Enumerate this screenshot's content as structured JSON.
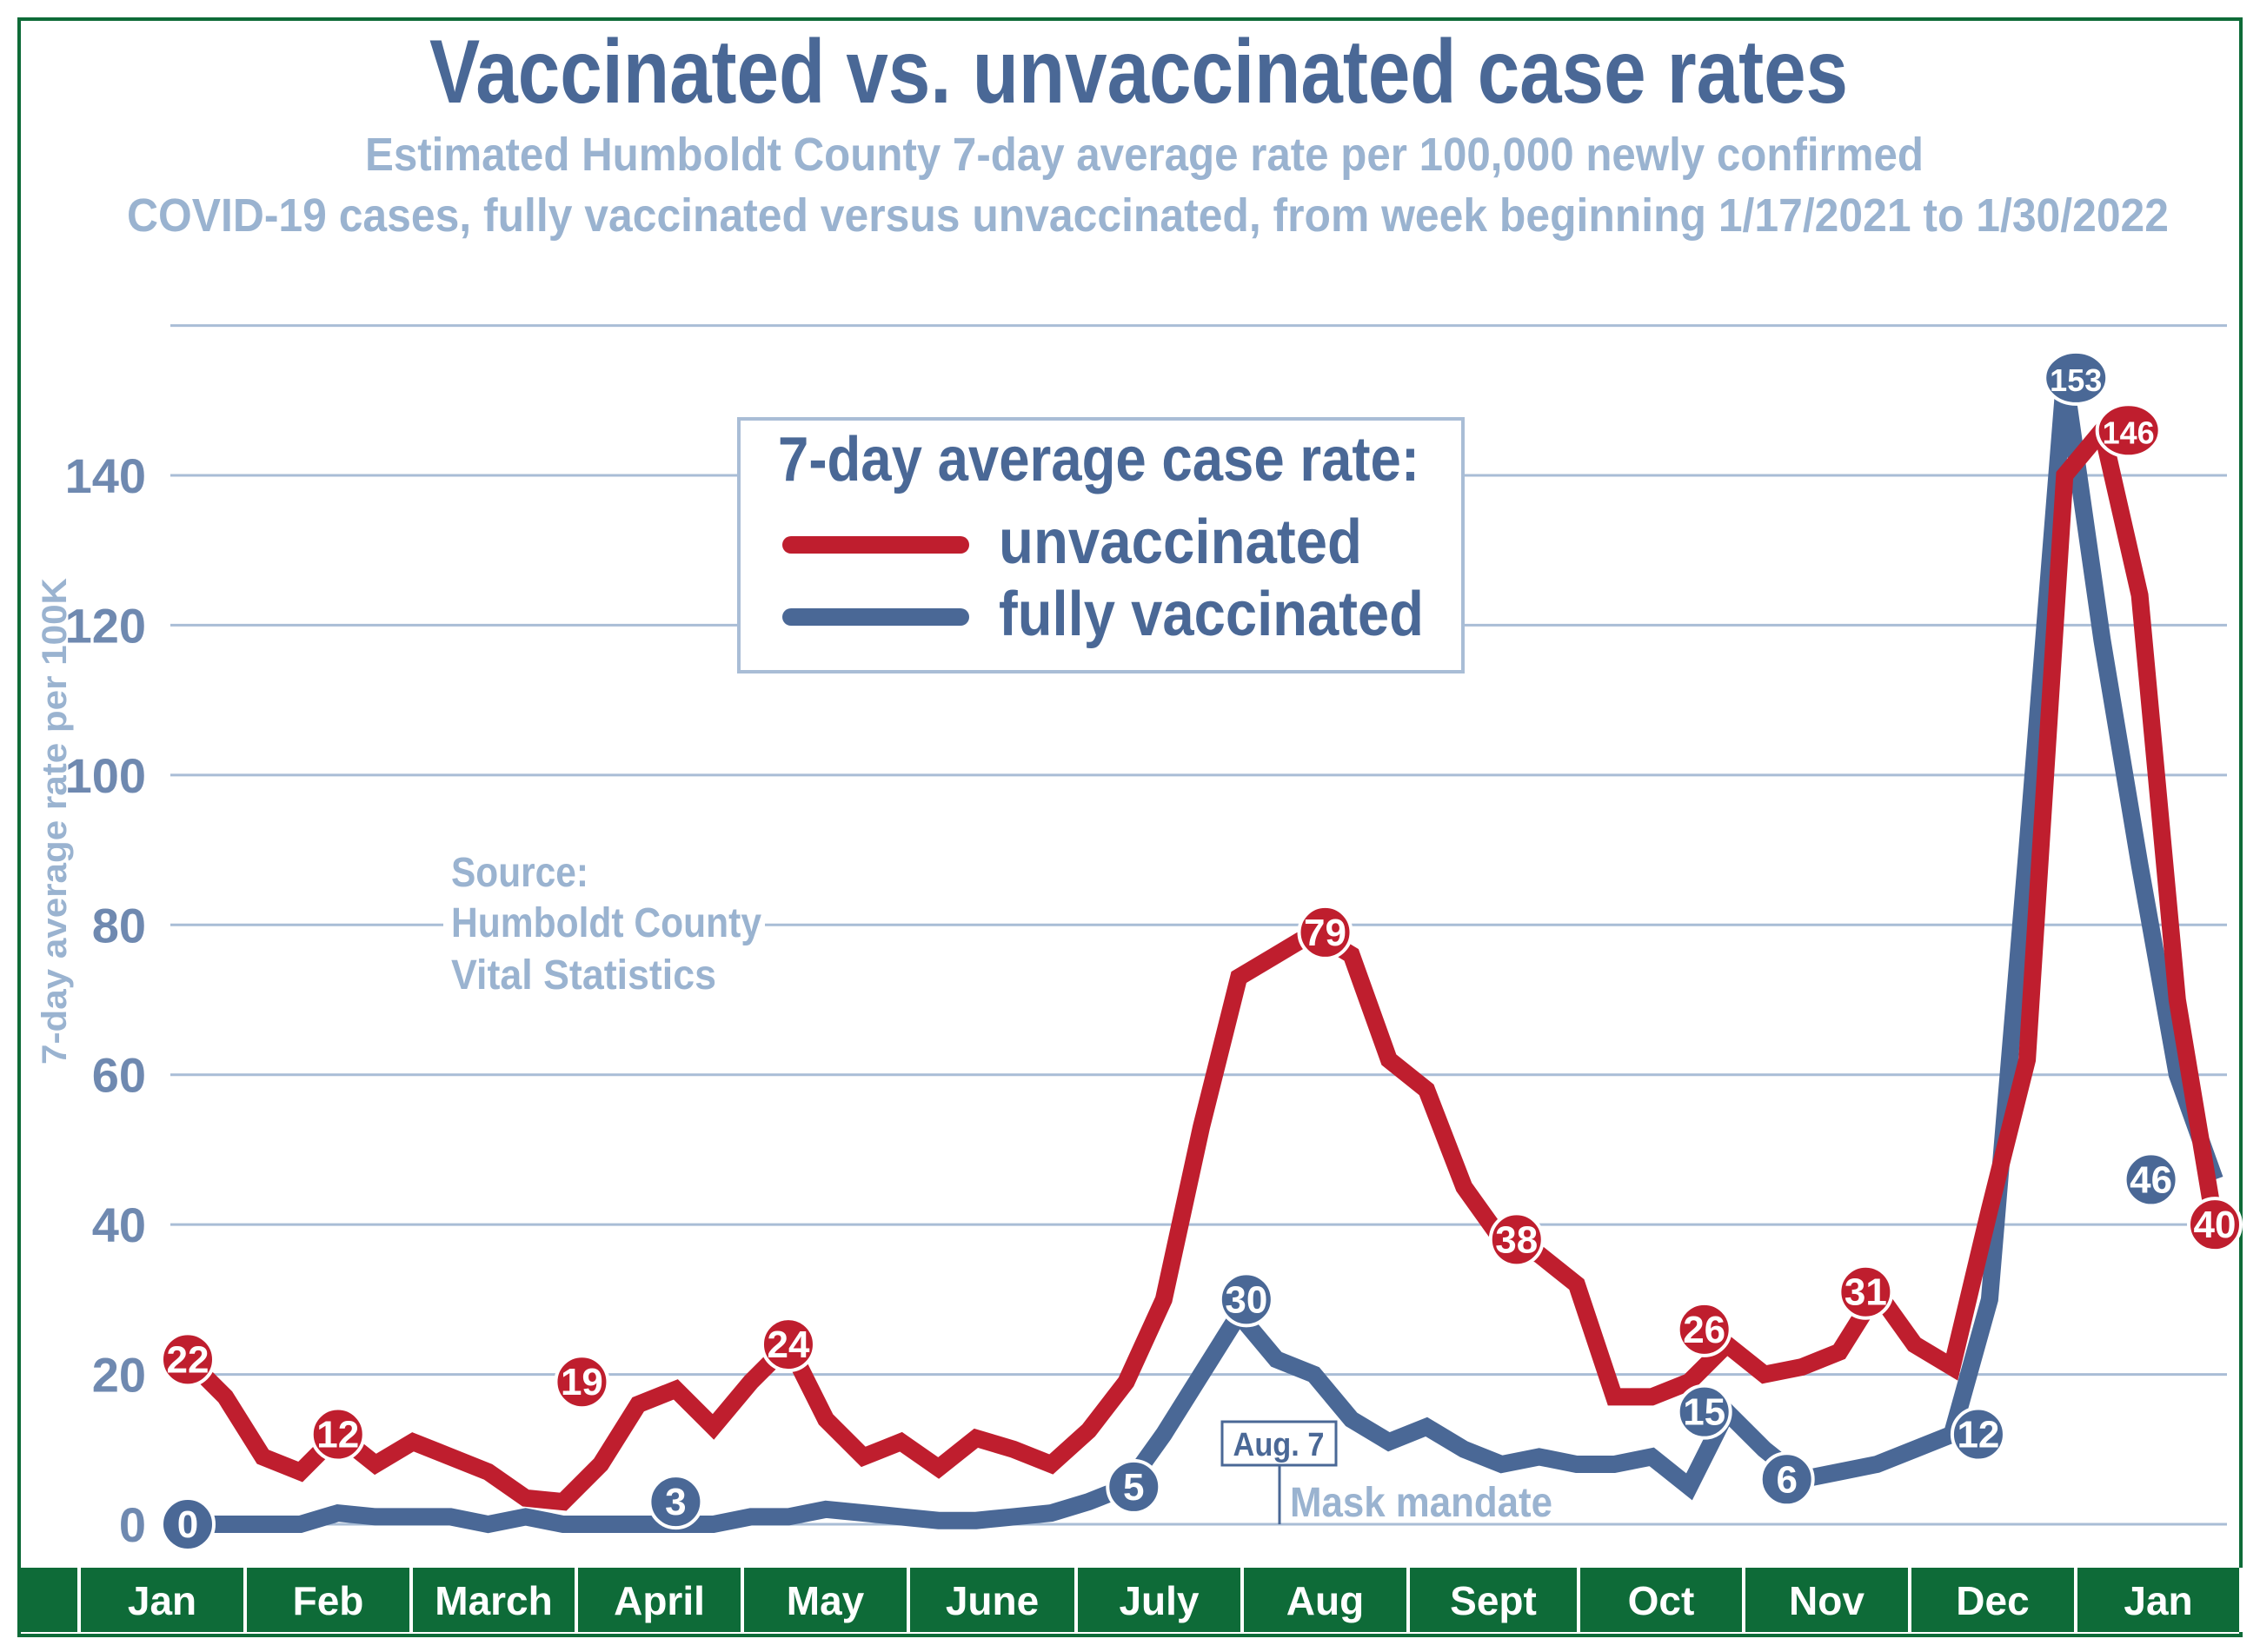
{
  "chart_data": {
    "type": "line",
    "title": "Vaccinated vs. unvaccinated case rates",
    "subtitle": [
      "Estimated Humboldt County 7-day average rate per 100,000 newly confirmed",
      "COVID-19 cases,  fully vaccinated versus unvaccinated, from week beginning 1/17/2021 to 1/30/2022"
    ],
    "ylabel": "7-day average rate per 100K",
    "xlabel": "",
    "ylim": [
      0,
      160
    ],
    "yticks": [
      0,
      20,
      40,
      60,
      80,
      100,
      120,
      140
    ],
    "grid": true,
    "months": [
      "Jan",
      "Feb",
      "March",
      "April",
      "May",
      "June",
      "July",
      "Aug",
      "Sept",
      "Oct",
      "Nov",
      "Dec",
      "Jan"
    ],
    "legend": {
      "title": "7-day average case rate:",
      "placement": "top-center"
    },
    "series": [
      {
        "name": "unvaccinated",
        "color": "#bf1e2e",
        "values": [
          22,
          17,
          9,
          7,
          12,
          8,
          11,
          9,
          7,
          3.5,
          3,
          8,
          16,
          18,
          13,
          19,
          24,
          14,
          9,
          11,
          7.5,
          11.5,
          10,
          8,
          12.5,
          19,
          30,
          53,
          73,
          76,
          79,
          76,
          62,
          58,
          45,
          38,
          36,
          32,
          17,
          17,
          19,
          24,
          20,
          21,
          23,
          31,
          24,
          21,
          42,
          62,
          140,
          146,
          124,
          70,
          40
        ],
        "labels": [
          {
            "week": 0,
            "value": "22"
          },
          {
            "week": 4,
            "value": "12"
          },
          {
            "week": 10.5,
            "value": "19"
          },
          {
            "week": 16,
            "value": "24"
          },
          {
            "week": 30.3,
            "value": "79"
          },
          {
            "week": 35.4,
            "value": "38"
          },
          {
            "week": 40.4,
            "value": "26"
          },
          {
            "week": 44.7,
            "value": "31"
          },
          {
            "week": 51.7,
            "value": "146"
          },
          {
            "week": 54,
            "value": "40"
          }
        ]
      },
      {
        "name": "fully vaccinated",
        "color": "#4a6896",
        "values": [
          0,
          0,
          0,
          0,
          1.5,
          1,
          1,
          1,
          0,
          1,
          0,
          0,
          0,
          0,
          0,
          1,
          1,
          2,
          1.5,
          1,
          0.5,
          0.5,
          1,
          1.5,
          3,
          5,
          12,
          20,
          28,
          22,
          20,
          14,
          11,
          13,
          10,
          8,
          9,
          8,
          8,
          9,
          5,
          15,
          10,
          6,
          7,
          8,
          10,
          12,
          30,
          90,
          153,
          118,
          88,
          60,
          46
        ],
        "labels": [
          {
            "week": 0,
            "value": "0"
          },
          {
            "week": 13,
            "value": "3"
          },
          {
            "week": 25.2,
            "value": "5"
          },
          {
            "week": 28.2,
            "value": "30"
          },
          {
            "week": 40.4,
            "value": "15"
          },
          {
            "week": 42.6,
            "value": "6"
          },
          {
            "week": 47.7,
            "value": "12"
          },
          {
            "week": 50.3,
            "value": "153"
          },
          {
            "week": 52.3,
            "value": "46"
          }
        ]
      }
    ],
    "annotations": {
      "source": [
        "Source:",
        "Humboldt County",
        "Vital Statistics"
      ],
      "mask_date": "Aug. 7",
      "mask_text": "Mask mandate"
    }
  }
}
